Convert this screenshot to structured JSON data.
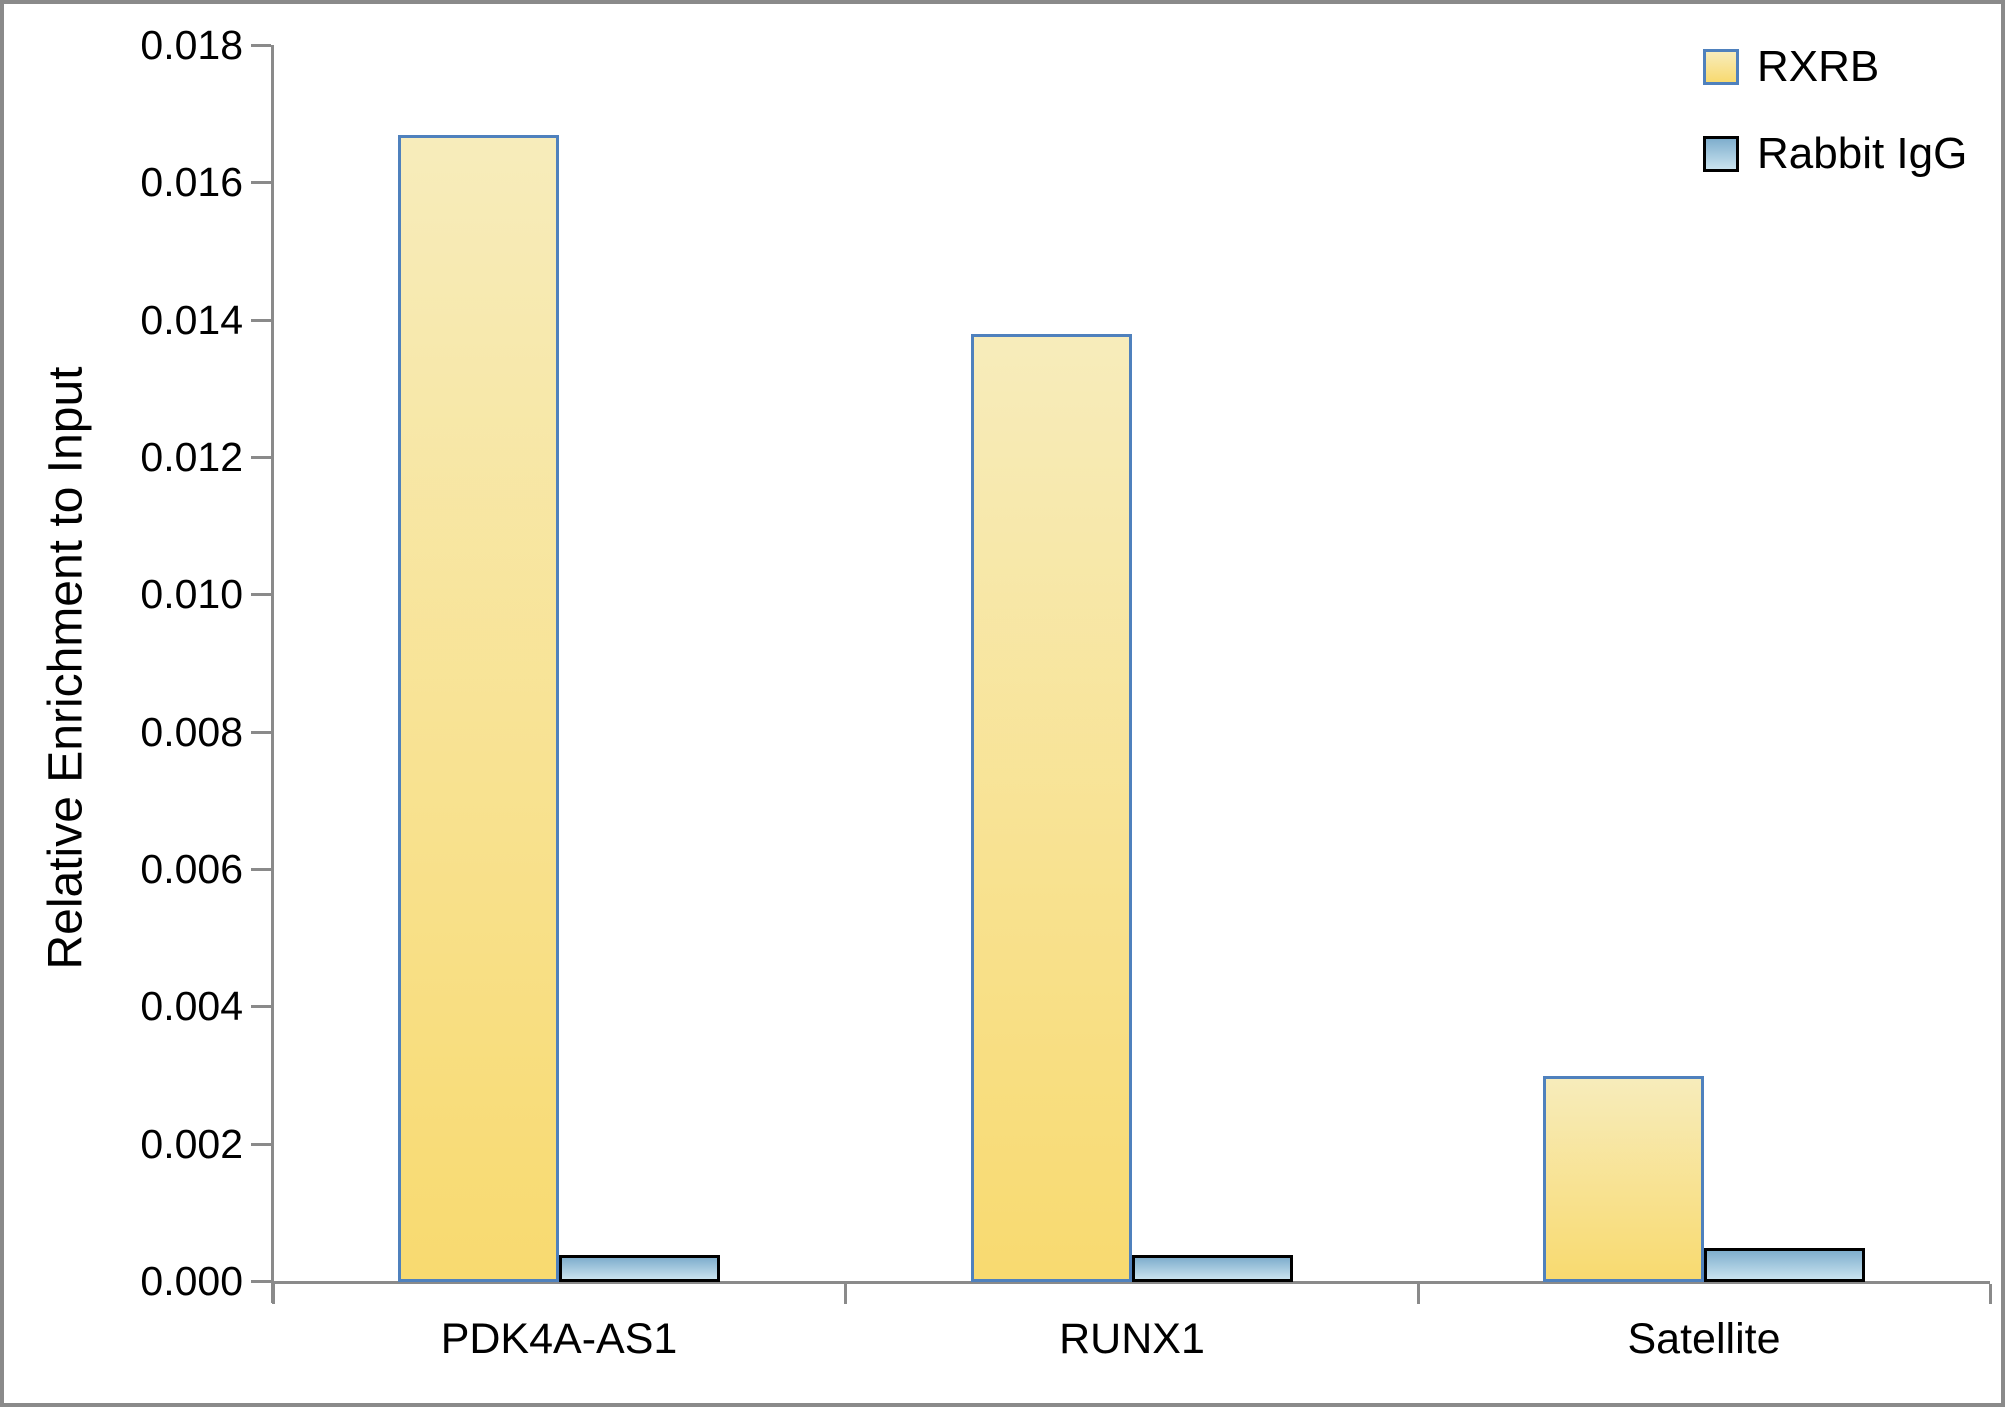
{
  "figure": {
    "background": "#FFFFFF",
    "frame_border_color": "#8A8A8A",
    "axis_color": "#8A8A8A"
  },
  "chart_data": {
    "type": "bar",
    "title": "",
    "xlabel": "",
    "ylabel": "Relative Enrichment to Input",
    "categories": [
      "PDK4A-AS1",
      "RUNX1",
      "Satellite"
    ],
    "series": [
      {
        "name": "RXRB",
        "values": [
          0.0167,
          0.0138,
          0.003
        ],
        "fill_top": "#F7ECBB",
        "fill_bottom": "#F8DA70",
        "border_color": "#4F81BD"
      },
      {
        "name": "Rabbit IgG",
        "values": [
          0.0004,
          0.0004,
          0.0005
        ],
        "fill_top": "#7FAECD",
        "fill_bottom": "#C9E3EF",
        "border_color": "#000000"
      }
    ],
    "ylim": [
      0,
      0.018
    ],
    "ytick_step": 0.002,
    "ytick_labels": [
      "0.000",
      "0.002",
      "0.004",
      "0.006",
      "0.008",
      "0.010",
      "0.012",
      "0.014",
      "0.016",
      "0.018"
    ],
    "grid": false,
    "legend_position": "top-right"
  }
}
